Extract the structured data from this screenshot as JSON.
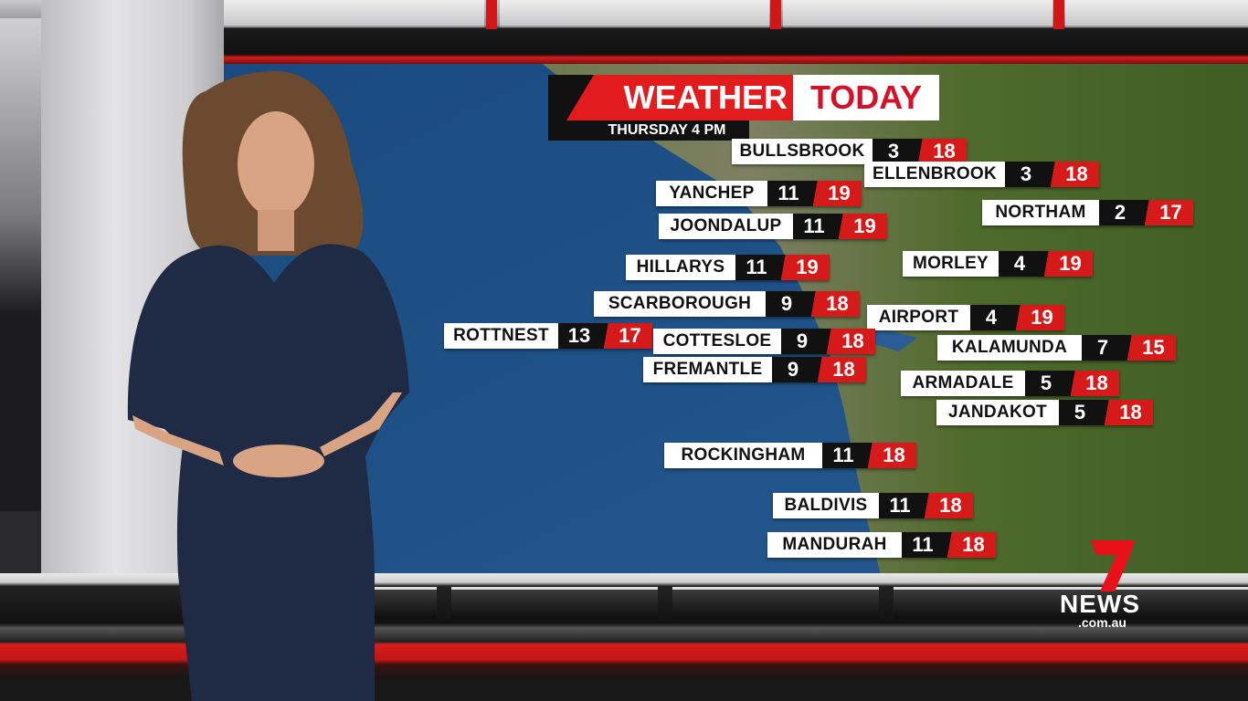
{
  "header": {
    "title_part1": "WEATHER",
    "title_part2": "TODAY",
    "subtitle": "THURSDAY 4 PM"
  },
  "colors": {
    "brand_red": "#e21c1c",
    "ocean": "#1d4f86",
    "land": "#4d6a2c"
  },
  "logo": {
    "text": "NEWS",
    "domain": ".com.au",
    "numeral": "7"
  },
  "locations": [
    {
      "name": "BULLSBROOK",
      "min": "3",
      "max": "18"
    },
    {
      "name": "ELLENBROOK",
      "min": "3",
      "max": "18"
    },
    {
      "name": "YANCHEP",
      "min": "11",
      "max": "19"
    },
    {
      "name": "NORTHAM",
      "min": "2",
      "max": "17"
    },
    {
      "name": "JOONDALUP",
      "min": "11",
      "max": "19"
    },
    {
      "name": "HILLARYS",
      "min": "11",
      "max": "19"
    },
    {
      "name": "MORLEY",
      "min": "4",
      "max": "19"
    },
    {
      "name": "SCARBOROUGH",
      "min": "9",
      "max": "18"
    },
    {
      "name": "AIRPORT",
      "min": "4",
      "max": "19"
    },
    {
      "name": "ROTTNEST",
      "min": "13",
      "max": "17"
    },
    {
      "name": "COTTESLOE",
      "min": "9",
      "max": "18"
    },
    {
      "name": "KALAMUNDA",
      "min": "7",
      "max": "15"
    },
    {
      "name": "FREMANTLE",
      "min": "9",
      "max": "18"
    },
    {
      "name": "ARMADALE",
      "min": "5",
      "max": "18"
    },
    {
      "name": "JANDAKOT",
      "min": "5",
      "max": "18"
    },
    {
      "name": "ROCKINGHAM",
      "min": "11",
      "max": "18"
    },
    {
      "name": "BALDIVIS",
      "min": "11",
      "max": "18"
    },
    {
      "name": "MANDURAH",
      "min": "11",
      "max": "18"
    }
  ]
}
